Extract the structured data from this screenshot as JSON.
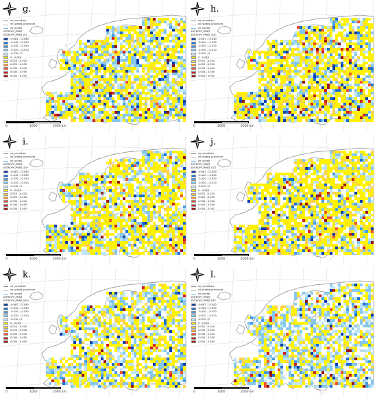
{
  "panels": [
    {
      "letter": "g.",
      "month": "JUL",
      "legend_title": "ENTROPY_PRINT_JUL",
      "seed": 7,
      "yellow": 0.42,
      "cyan": 0.28,
      "blue": 0.05,
      "red": 0.03
    },
    {
      "letter": "h.",
      "month": "AUG",
      "legend_title": "ENTROPY_PRINT_AUG",
      "seed": 13,
      "yellow": 0.48,
      "cyan": 0.22,
      "blue": 0.06,
      "red": 0.04
    },
    {
      "letter": "i.",
      "month": "SEP",
      "legend_title": "ENTROPY_PRINT_SEP",
      "seed": 21,
      "yellow": 0.45,
      "cyan": 0.25,
      "blue": 0.05,
      "red": 0.03
    },
    {
      "letter": "j.",
      "month": "OCT",
      "legend_title": "ENTROPY_PRINT_OCT",
      "seed": 33,
      "yellow": 0.55,
      "cyan": 0.18,
      "blue": 0.04,
      "red": 0.03
    },
    {
      "letter": "k.",
      "month": "NOV",
      "legend_title": "ENTROPY_PRINT_NOV",
      "seed": 41,
      "yellow": 0.4,
      "cyan": 0.27,
      "blue": 0.05,
      "red": 0.02
    },
    {
      "letter": "l.",
      "month": "DEC",
      "legend_title": "ENTROPY_PRINT_DEC",
      "seed": 57,
      "yellow": 0.3,
      "cyan": 0.35,
      "blue": 0.05,
      "red": 0.02
    }
  ],
  "legend": {
    "layer_countries": "ne_countries",
    "layer_states": "ne_states_provinces",
    "layer_ocean": "ne_ocean",
    "group": "ENTROPY_PRINT",
    "classes": [
      {
        "label": "-0.087 - -0.040",
        "color": "#0b3da8"
      },
      {
        "label": "-0.040 - -0.030",
        "color": "#1f6fd0"
      },
      {
        "label": "-0.030 - -0.020",
        "color": "#4a9ee0"
      },
      {
        "label": "-0.020 - -0.010",
        "color": "#86c8ec"
      },
      {
        "label": "-0.010 - 0",
        "color": "#bfe6f6"
      },
      {
        "label": "0 - 0.010",
        "color": "#fff200"
      },
      {
        "label": "0.010 - 0.020",
        "color": "#ffd24a"
      },
      {
        "label": "0.020 - 0.030",
        "color": "#ff9d2e"
      },
      {
        "label": "0.030 - 0.040",
        "color": "#f2552c"
      },
      {
        "label": "0.040 - 0.050",
        "color": "#d4201f"
      },
      {
        "label": "0.050 - 0.092",
        "color": "#9a1010"
      }
    ]
  },
  "scale": {
    "zero": "0",
    "mid": "1000",
    "end": "2000 km"
  },
  "colors": {
    "land": "#ffffff",
    "border": "#9a9a9a",
    "graticule": "#d9d9d9",
    "coast": "#8a8a8a"
  }
}
